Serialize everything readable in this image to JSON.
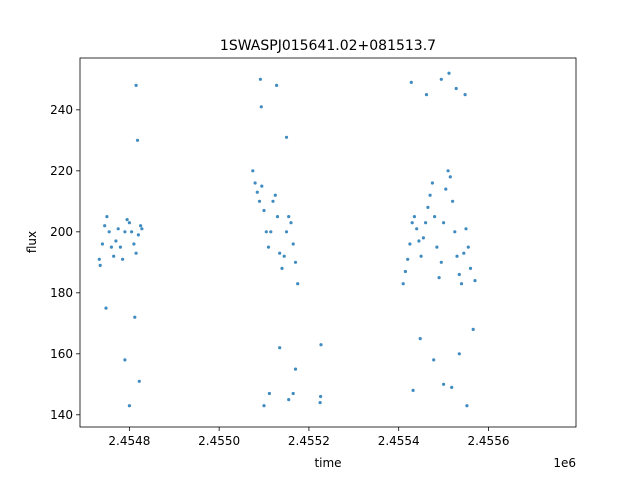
{
  "chart_data": {
    "type": "scatter",
    "title": "1SWASPJ015641.02+081513.7",
    "xlabel": "time",
    "ylabel": "flux",
    "x_offset_label": "1e6",
    "x_multiplier": 1000000,
    "xlim": [
      2454690,
      2455795
    ],
    "ylim": [
      136,
      257
    ],
    "x_ticks": [
      2454800,
      2455000,
      2455200,
      2455400,
      2455600
    ],
    "x_tick_labels": [
      "2.4548",
      "2.4550",
      "2.4552",
      "2.4554",
      "2.4556"
    ],
    "y_ticks": [
      140,
      160,
      180,
      200,
      220,
      240
    ],
    "y_tick_labels": [
      "140",
      "160",
      "180",
      "200",
      "220",
      "240"
    ],
    "grid": false,
    "marker_color": "#1f77b4",
    "series": [
      {
        "points": [
          [
            2454733,
            191
          ],
          [
            2454735,
            189
          ],
          [
            2454740,
            196
          ],
          [
            2454745,
            202
          ],
          [
            2454750,
            205
          ],
          [
            2454755,
            200
          ],
          [
            2454760,
            195
          ],
          [
            2454765,
            192
          ],
          [
            2454770,
            197
          ],
          [
            2454775,
            201
          ],
          [
            2454780,
            195
          ],
          [
            2454785,
            191
          ],
          [
            2454790,
            200
          ],
          [
            2454795,
            204
          ],
          [
            2454800,
            203
          ],
          [
            2454805,
            200
          ],
          [
            2454810,
            196
          ],
          [
            2454815,
            193
          ],
          [
            2454820,
            199
          ],
          [
            2454825,
            202
          ],
          [
            2454828,
            201
          ],
          [
            2454748,
            175
          ],
          [
            2454790,
            158
          ],
          [
            2454800,
            143
          ],
          [
            2454815,
            248
          ],
          [
            2454818,
            230
          ],
          [
            2454822,
            151
          ],
          [
            2454812,
            172
          ],
          [
            2455075,
            220
          ],
          [
            2455080,
            216
          ],
          [
            2455085,
            213
          ],
          [
            2455090,
            210
          ],
          [
            2455095,
            215
          ],
          [
            2455100,
            207
          ],
          [
            2455105,
            200
          ],
          [
            2455110,
            195
          ],
          [
            2455115,
            200
          ],
          [
            2455120,
            210
          ],
          [
            2455125,
            212
          ],
          [
            2455130,
            205
          ],
          [
            2455135,
            193
          ],
          [
            2455140,
            188
          ],
          [
            2455145,
            192
          ],
          [
            2455150,
            200
          ],
          [
            2455155,
            205
          ],
          [
            2455160,
            203
          ],
          [
            2455165,
            196
          ],
          [
            2455170,
            190
          ],
          [
            2455175,
            183
          ],
          [
            2455092,
            250
          ],
          [
            2455094,
            241
          ],
          [
            2455100,
            143
          ],
          [
            2455112,
            147
          ],
          [
            2455128,
            248
          ],
          [
            2455135,
            162
          ],
          [
            2455150,
            231
          ],
          [
            2455155,
            145
          ],
          [
            2455165,
            147
          ],
          [
            2455170,
            155
          ],
          [
            2455225,
            144
          ],
          [
            2455226,
            146
          ],
          [
            2455227,
            163
          ],
          [
            2455410,
            183
          ],
          [
            2455415,
            187
          ],
          [
            2455420,
            191
          ],
          [
            2455425,
            196
          ],
          [
            2455430,
            203
          ],
          [
            2455435,
            205
          ],
          [
            2455440,
            201
          ],
          [
            2455445,
            197
          ],
          [
            2455450,
            192
          ],
          [
            2455455,
            198
          ],
          [
            2455460,
            203
          ],
          [
            2455465,
            208
          ],
          [
            2455470,
            212
          ],
          [
            2455475,
            216
          ],
          [
            2455480,
            205
          ],
          [
            2455485,
            195
          ],
          [
            2455490,
            185
          ],
          [
            2455495,
            190
          ],
          [
            2455500,
            203
          ],
          [
            2455505,
            214
          ],
          [
            2455510,
            220
          ],
          [
            2455515,
            218
          ],
          [
            2455520,
            210
          ],
          [
            2455525,
            200
          ],
          [
            2455530,
            192
          ],
          [
            2455535,
            186
          ],
          [
            2455540,
            183
          ],
          [
            2455545,
            193
          ],
          [
            2455550,
            201
          ],
          [
            2455555,
            195
          ],
          [
            2455560,
            188
          ],
          [
            2455570,
            184
          ],
          [
            2455428,
            249
          ],
          [
            2455432,
            148
          ],
          [
            2455448,
            165
          ],
          [
            2455462,
            245
          ],
          [
            2455478,
            158
          ],
          [
            2455495,
            250
          ],
          [
            2455500,
            150
          ],
          [
            2455512,
            252
          ],
          [
            2455518,
            149
          ],
          [
            2455528,
            247
          ],
          [
            2455535,
            160
          ],
          [
            2455548,
            245
          ],
          [
            2455552,
            143
          ],
          [
            2455566,
            168
          ]
        ]
      }
    ]
  }
}
